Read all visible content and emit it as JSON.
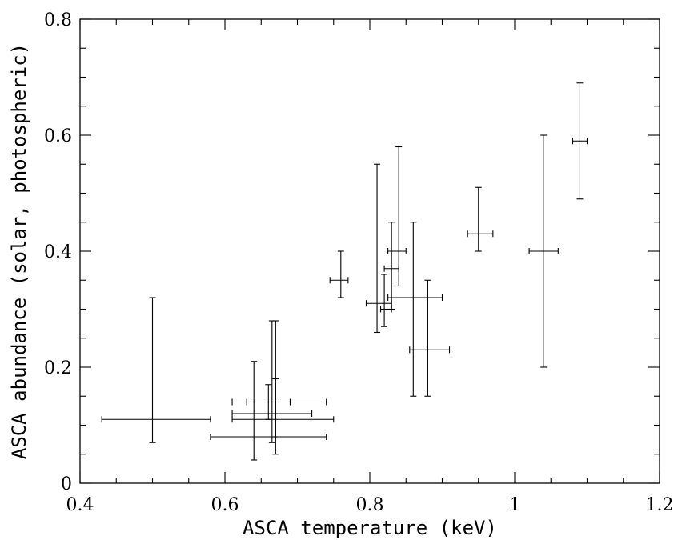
{
  "chart_data": {
    "type": "scatter",
    "xlabel": "ASCA temperature (keV)",
    "ylabel": "ASCA abundance (solar, photospheric)",
    "xlim": [
      0.4,
      1.2
    ],
    "ylim": [
      0,
      0.8
    ],
    "x_ticks": [
      0.4,
      0.6,
      0.8,
      1,
      1.2
    ],
    "x_tick_labels": [
      "0.4",
      "0.6",
      "0.8",
      "1",
      "1.2"
    ],
    "y_ticks": [
      0,
      0.2,
      0.4,
      0.6,
      0.8
    ],
    "y_tick_labels": [
      "0",
      "0.2",
      "0.4",
      "0.6",
      "0.8"
    ],
    "x_minor_step": 0.05,
    "y_minor_step": 0.05,
    "grid": false,
    "markers": "error-bar crosses",
    "points": [
      {
        "x": 0.5,
        "xlo": 0.43,
        "xhi": 0.58,
        "y": 0.11,
        "ylo": 0.07,
        "yhi": 0.32
      },
      {
        "x": 0.64,
        "xlo": 0.58,
        "xhi": 0.74,
        "y": 0.08,
        "ylo": 0.04,
        "yhi": 0.21
      },
      {
        "x": 0.66,
        "xlo": 0.63,
        "xhi": 0.69,
        "y": 0.14,
        "ylo": 0.11,
        "yhi": 0.17
      },
      {
        "x": 0.665,
        "xlo": 0.61,
        "xhi": 0.72,
        "y": 0.12,
        "ylo": 0.07,
        "yhi": 0.28
      },
      {
        "x": 0.67,
        "xlo": 0.61,
        "xhi": 0.74,
        "y": 0.14,
        "ylo": 0.08,
        "yhi": 0.28
      },
      {
        "x": 0.67,
        "xlo": 0.61,
        "xhi": 0.75,
        "y": 0.11,
        "ylo": 0.05,
        "yhi": 0.18
      },
      {
        "x": 0.76,
        "xlo": 0.745,
        "xhi": 0.77,
        "y": 0.35,
        "ylo": 0.32,
        "yhi": 0.4
      },
      {
        "x": 0.81,
        "xlo": 0.795,
        "xhi": 0.83,
        "y": 0.31,
        "ylo": 0.26,
        "yhi": 0.55
      },
      {
        "x": 0.82,
        "xlo": 0.815,
        "xhi": 0.83,
        "y": 0.3,
        "ylo": 0.27,
        "yhi": 0.36
      },
      {
        "x": 0.83,
        "xlo": 0.82,
        "xhi": 0.84,
        "y": 0.37,
        "ylo": 0.3,
        "yhi": 0.45
      },
      {
        "x": 0.84,
        "xlo": 0.825,
        "xhi": 0.85,
        "y": 0.4,
        "ylo": 0.34,
        "yhi": 0.58
      },
      {
        "x": 0.86,
        "xlo": 0.825,
        "xhi": 0.9,
        "y": 0.32,
        "ylo": 0.15,
        "yhi": 0.45
      },
      {
        "x": 0.88,
        "xlo": 0.855,
        "xhi": 0.91,
        "y": 0.23,
        "ylo": 0.15,
        "yhi": 0.35
      },
      {
        "x": 0.95,
        "xlo": 0.935,
        "xhi": 0.97,
        "y": 0.43,
        "ylo": 0.4,
        "yhi": 0.51
      },
      {
        "x": 1.04,
        "xlo": 1.02,
        "xhi": 1.06,
        "y": 0.4,
        "ylo": 0.2,
        "yhi": 0.6
      },
      {
        "x": 1.09,
        "xlo": 1.08,
        "xhi": 1.1,
        "y": 0.59,
        "ylo": 0.49,
        "yhi": 0.69
      }
    ]
  }
}
